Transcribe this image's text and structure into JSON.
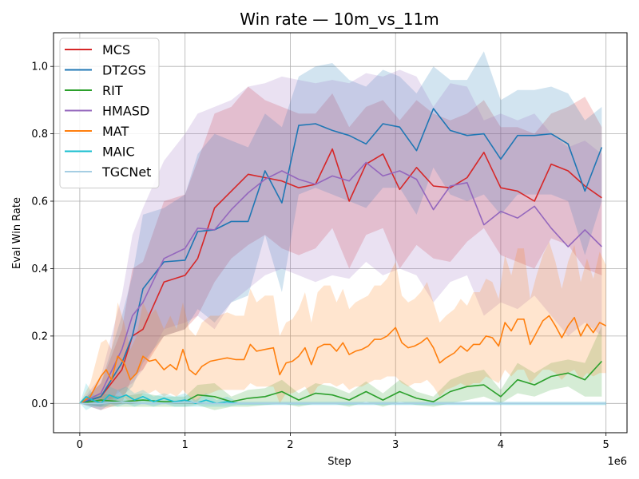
{
  "chart_data": {
    "type": "line",
    "title": "Win rate — 10m_vs_11m",
    "xlabel": "Step",
    "ylabel": "Eval Win Rate",
    "x_offset_label": "1e6",
    "xlim": [
      -0.25,
      5.2
    ],
    "ylim": [
      -0.087,
      1.1
    ],
    "x_ticks": [
      0,
      1,
      2,
      3,
      4,
      5
    ],
    "x_tick_labels": [
      "0",
      "1",
      "2",
      "3",
      "4",
      "5"
    ],
    "y_ticks": [
      0.0,
      0.2,
      0.4,
      0.6,
      0.8,
      1.0
    ],
    "y_tick_labels": [
      "0.0",
      "0.2",
      "0.4",
      "0.6",
      "0.8",
      "1.0"
    ],
    "grid": true,
    "legend_position": "top-left",
    "shaded_band": "mean ± spread across seeds",
    "series": [
      {
        "name": "MCS",
        "color": "#d62728",
        "x": [
          0,
          0.2,
          0.4,
          0.5,
          0.6,
          0.8,
          1.0,
          1.12,
          1.28,
          1.44,
          1.6,
          1.76,
          1.92,
          2.08,
          2.24,
          2.4,
          2.56,
          2.72,
          2.88,
          3.04,
          3.2,
          3.36,
          3.52,
          3.68,
          3.84,
          4.0,
          4.16,
          4.32,
          4.48,
          4.64,
          4.8,
          4.96
        ],
        "y": [
          0.0,
          0.02,
          0.1,
          0.2,
          0.22,
          0.36,
          0.38,
          0.43,
          0.58,
          0.63,
          0.68,
          0.67,
          0.66,
          0.64,
          0.65,
          0.755,
          0.6,
          0.71,
          0.74,
          0.635,
          0.7,
          0.645,
          0.64,
          0.67,
          0.745,
          0.64,
          0.63,
          0.6,
          0.71,
          0.69,
          0.645,
          0.61
        ],
        "lower": [
          0.0,
          -0.02,
          0.0,
          0.08,
          0.1,
          0.2,
          0.22,
          0.26,
          0.36,
          0.43,
          0.47,
          0.5,
          0.46,
          0.44,
          0.46,
          0.52,
          0.4,
          0.5,
          0.52,
          0.4,
          0.47,
          0.43,
          0.42,
          0.48,
          0.52,
          0.44,
          0.42,
          0.4,
          0.49,
          0.47,
          0.4,
          0.38
        ],
        "upper": [
          0.0,
          0.06,
          0.22,
          0.4,
          0.42,
          0.6,
          0.62,
          0.72,
          0.86,
          0.88,
          0.94,
          0.9,
          0.88,
          0.86,
          0.86,
          0.92,
          0.82,
          0.88,
          0.9,
          0.84,
          0.9,
          0.86,
          0.84,
          0.86,
          0.9,
          0.82,
          0.82,
          0.8,
          0.86,
          0.88,
          0.91,
          0.82
        ]
      },
      {
        "name": "DT2GS",
        "color": "#1f77b4",
        "x": [
          0,
          0.2,
          0.4,
          0.5,
          0.6,
          0.8,
          1.0,
          1.12,
          1.28,
          1.44,
          1.6,
          1.76,
          1.92,
          2.08,
          2.24,
          2.4,
          2.56,
          2.72,
          2.88,
          3.04,
          3.2,
          3.36,
          3.52,
          3.68,
          3.84,
          4.0,
          4.16,
          4.32,
          4.48,
          4.64,
          4.8,
          4.96
        ],
        "y": [
          0.0,
          0.02,
          0.12,
          0.2,
          0.34,
          0.42,
          0.425,
          0.51,
          0.515,
          0.54,
          0.54,
          0.69,
          0.595,
          0.825,
          0.83,
          0.81,
          0.795,
          0.77,
          0.83,
          0.82,
          0.75,
          0.875,
          0.81,
          0.795,
          0.8,
          0.725,
          0.795,
          0.795,
          0.8,
          0.77,
          0.63,
          0.76
        ],
        "lower": [
          0.0,
          -0.02,
          0.02,
          0.05,
          0.12,
          0.2,
          0.22,
          0.28,
          0.24,
          0.3,
          0.32,
          0.5,
          0.33,
          0.62,
          0.64,
          0.62,
          0.6,
          0.58,
          0.64,
          0.64,
          0.56,
          0.7,
          0.62,
          0.6,
          0.62,
          0.56,
          0.62,
          0.62,
          0.62,
          0.6,
          0.44,
          0.6
        ],
        "upper": [
          0.0,
          0.06,
          0.26,
          0.38,
          0.56,
          0.58,
          0.62,
          0.74,
          0.8,
          0.78,
          0.76,
          0.86,
          0.82,
          0.97,
          1.0,
          1.01,
          0.96,
          0.94,
          0.99,
          0.97,
          0.92,
          1.0,
          0.96,
          0.96,
          1.045,
          0.9,
          0.93,
          0.93,
          0.94,
          0.92,
          0.84,
          0.88
        ]
      },
      {
        "name": "RIT",
        "color": "#2ca02c",
        "x": [
          0,
          0.2,
          0.4,
          0.6,
          0.8,
          1.0,
          1.12,
          1.28,
          1.44,
          1.6,
          1.76,
          1.92,
          2.08,
          2.24,
          2.4,
          2.56,
          2.72,
          2.88,
          3.04,
          3.2,
          3.36,
          3.52,
          3.68,
          3.84,
          4.0,
          4.16,
          4.32,
          4.48,
          4.64,
          4.8,
          4.96
        ],
        "y": [
          0.0,
          0.01,
          0.005,
          0.01,
          0.005,
          0.005,
          0.025,
          0.02,
          0.005,
          0.015,
          0.02,
          0.035,
          0.01,
          0.03,
          0.025,
          0.01,
          0.035,
          0.01,
          0.035,
          0.015,
          0.005,
          0.035,
          0.05,
          0.055,
          0.02,
          0.07,
          0.055,
          0.08,
          0.09,
          0.07,
          0.125
        ],
        "lower": [
          0.0,
          -0.01,
          -0.01,
          -0.01,
          -0.01,
          -0.01,
          -0.005,
          -0.02,
          -0.01,
          -0.01,
          -0.005,
          0.0,
          -0.01,
          0.0,
          0.0,
          -0.01,
          0.005,
          -0.01,
          0.005,
          -0.005,
          -0.01,
          0.0,
          0.01,
          0.02,
          0.0,
          0.03,
          0.02,
          0.04,
          0.05,
          0.02,
          0.02
        ],
        "upper": [
          0.0,
          0.03,
          0.02,
          0.03,
          0.02,
          0.02,
          0.055,
          0.06,
          0.02,
          0.04,
          0.045,
          0.07,
          0.03,
          0.06,
          0.05,
          0.03,
          0.065,
          0.03,
          0.07,
          0.035,
          0.02,
          0.07,
          0.09,
          0.1,
          0.04,
          0.12,
          0.09,
          0.12,
          0.13,
          0.12,
          0.23
        ]
      },
      {
        "name": "HMASD",
        "color": "#9467bd",
        "x": [
          0,
          0.2,
          0.4,
          0.5,
          0.6,
          0.8,
          1.0,
          1.12,
          1.28,
          1.44,
          1.6,
          1.76,
          1.92,
          2.08,
          2.24,
          2.4,
          2.56,
          2.72,
          2.88,
          3.04,
          3.2,
          3.36,
          3.52,
          3.68,
          3.84,
          4.0,
          4.16,
          4.32,
          4.48,
          4.64,
          4.8,
          4.96
        ],
        "y": [
          0.0,
          0.03,
          0.16,
          0.26,
          0.3,
          0.43,
          0.46,
          0.52,
          0.515,
          0.575,
          0.625,
          0.665,
          0.69,
          0.665,
          0.65,
          0.675,
          0.66,
          0.715,
          0.675,
          0.69,
          0.665,
          0.575,
          0.645,
          0.655,
          0.53,
          0.57,
          0.55,
          0.585,
          0.52,
          0.465,
          0.515,
          0.465
        ],
        "lower": [
          0.0,
          -0.01,
          0.04,
          0.06,
          0.1,
          0.22,
          0.24,
          0.26,
          0.22,
          0.3,
          0.34,
          0.38,
          0.4,
          0.38,
          0.36,
          0.38,
          0.37,
          0.42,
          0.38,
          0.4,
          0.38,
          0.3,
          0.36,
          0.38,
          0.26,
          0.3,
          0.28,
          0.32,
          0.26,
          0.2,
          0.24,
          0.2
        ],
        "upper": [
          0.0,
          0.08,
          0.32,
          0.5,
          0.58,
          0.72,
          0.8,
          0.86,
          0.88,
          0.9,
          0.94,
          0.95,
          0.97,
          0.96,
          0.95,
          0.96,
          0.95,
          0.98,
          0.97,
          0.99,
          0.97,
          0.88,
          0.95,
          0.94,
          0.84,
          0.86,
          0.84,
          0.86,
          0.8,
          0.76,
          0.78,
          0.74
        ]
      },
      {
        "name": "MAT",
        "color": "#ff7f0e",
        "x": [
          0,
          0.1,
          0.2,
          0.25,
          0.3,
          0.36,
          0.42,
          0.48,
          0.54,
          0.6,
          0.66,
          0.72,
          0.8,
          0.86,
          0.92,
          0.98,
          1.04,
          1.1,
          1.16,
          1.24,
          1.32,
          1.4,
          1.48,
          1.56,
          1.62,
          1.68,
          1.76,
          1.84,
          1.9,
          1.96,
          2.02,
          2.08,
          2.14,
          2.2,
          2.26,
          2.32,
          2.38,
          2.44,
          2.5,
          2.56,
          2.62,
          2.68,
          2.74,
          2.8,
          2.86,
          2.92,
          3.0,
          3.06,
          3.12,
          3.18,
          3.24,
          3.3,
          3.36,
          3.42,
          3.48,
          3.56,
          3.62,
          3.68,
          3.74,
          3.8,
          3.86,
          3.92,
          3.98,
          4.04,
          4.1,
          4.16,
          4.22,
          4.28,
          4.34,
          4.4,
          4.46,
          4.52,
          4.58,
          4.64,
          4.7,
          4.76,
          4.82,
          4.88,
          4.94,
          5.0
        ],
        "y": [
          0.0,
          0.02,
          0.08,
          0.1,
          0.07,
          0.14,
          0.12,
          0.07,
          0.09,
          0.14,
          0.125,
          0.13,
          0.1,
          0.115,
          0.1,
          0.16,
          0.1,
          0.085,
          0.11,
          0.125,
          0.13,
          0.135,
          0.13,
          0.13,
          0.175,
          0.155,
          0.16,
          0.165,
          0.085,
          0.12,
          0.125,
          0.14,
          0.165,
          0.115,
          0.165,
          0.175,
          0.175,
          0.155,
          0.18,
          0.145,
          0.155,
          0.16,
          0.17,
          0.19,
          0.19,
          0.2,
          0.225,
          0.18,
          0.165,
          0.17,
          0.18,
          0.195,
          0.165,
          0.12,
          0.135,
          0.15,
          0.17,
          0.155,
          0.175,
          0.175,
          0.2,
          0.195,
          0.17,
          0.24,
          0.215,
          0.25,
          0.25,
          0.175,
          0.21,
          0.245,
          0.26,
          0.23,
          0.195,
          0.23,
          0.255,
          0.2,
          0.235,
          0.21,
          0.24,
          0.23
        ],
        "lower": [
          0.0,
          0.0,
          0.0,
          0.02,
          0.0,
          0.04,
          0.02,
          0.0,
          0.0,
          0.03,
          0.03,
          0.04,
          0.02,
          0.03,
          0.02,
          0.04,
          0.02,
          0.0,
          0.02,
          0.03,
          0.04,
          0.04,
          0.04,
          0.04,
          0.06,
          0.05,
          0.05,
          0.05,
          0.0,
          0.03,
          0.03,
          0.04,
          0.05,
          0.02,
          0.05,
          0.06,
          0.06,
          0.05,
          0.06,
          0.04,
          0.05,
          0.05,
          0.06,
          0.07,
          0.07,
          0.08,
          0.08,
          0.06,
          0.05,
          0.06,
          0.06,
          0.07,
          0.05,
          0.02,
          0.04,
          0.05,
          0.06,
          0.05,
          0.06,
          0.06,
          0.08,
          0.07,
          0.06,
          0.1,
          0.08,
          0.1,
          0.1,
          0.06,
          0.08,
          0.1,
          0.1,
          0.09,
          0.07,
          0.09,
          0.1,
          0.07,
          0.09,
          0.08,
          0.09,
          0.09
        ],
        "upper": [
          0.0,
          0.06,
          0.18,
          0.19,
          0.16,
          0.3,
          0.24,
          0.16,
          0.2,
          0.3,
          0.26,
          0.28,
          0.22,
          0.26,
          0.22,
          0.3,
          0.22,
          0.2,
          0.24,
          0.26,
          0.26,
          0.27,
          0.26,
          0.26,
          0.34,
          0.3,
          0.32,
          0.32,
          0.2,
          0.24,
          0.25,
          0.28,
          0.33,
          0.24,
          0.33,
          0.35,
          0.35,
          0.3,
          0.34,
          0.28,
          0.3,
          0.31,
          0.32,
          0.35,
          0.35,
          0.37,
          0.42,
          0.32,
          0.3,
          0.31,
          0.33,
          0.36,
          0.3,
          0.24,
          0.26,
          0.28,
          0.31,
          0.29,
          0.33,
          0.33,
          0.37,
          0.36,
          0.31,
          0.44,
          0.38,
          0.46,
          0.46,
          0.31,
          0.38,
          0.44,
          0.48,
          0.42,
          0.34,
          0.42,
          0.47,
          0.36,
          0.43,
          0.37,
          0.45,
          0.41
        ]
      },
      {
        "name": "MAIC",
        "color": "#17becf",
        "x": [
          0,
          0.06,
          0.12,
          0.2,
          0.28,
          0.36,
          0.44,
          0.52,
          0.6,
          0.7,
          0.8,
          0.9,
          1.0,
          1.1,
          1.2,
          1.3,
          1.4,
          1.5,
          1.7,
          1.9,
          2.1,
          2.5,
          3.0,
          3.5,
          4.0,
          4.5,
          5.0
        ],
        "y": [
          0.0,
          0.02,
          0.01,
          0.0,
          0.025,
          0.015,
          0.025,
          0.01,
          0.02,
          0.005,
          0.015,
          0.005,
          0.01,
          0.0,
          0.01,
          0.0,
          0.005,
          0.0,
          0.0,
          0.0,
          0.0,
          0.0,
          0.0,
          0.0,
          0.0,
          0.0,
          0.0
        ],
        "lower": [
          0.0,
          -0.02,
          -0.01,
          -0.01,
          0.0,
          -0.01,
          0.0,
          -0.01,
          0.0,
          -0.01,
          0.0,
          -0.01,
          -0.01,
          -0.01,
          -0.01,
          -0.01,
          -0.01,
          -0.005,
          -0.005,
          -0.005,
          -0.005,
          -0.005,
          -0.005,
          -0.005,
          -0.005,
          -0.005,
          -0.005
        ],
        "upper": [
          0.0,
          0.06,
          0.03,
          0.01,
          0.05,
          0.04,
          0.05,
          0.03,
          0.04,
          0.02,
          0.03,
          0.02,
          0.03,
          0.01,
          0.03,
          0.01,
          0.02,
          0.005,
          0.005,
          0.005,
          0.005,
          0.005,
          0.005,
          0.005,
          0.005,
          0.005,
          0.005
        ]
      },
      {
        "name": "TGCNet",
        "color": "#a6cee3",
        "x": [
          0,
          0.2,
          0.4,
          0.6,
          0.8,
          1.0,
          1.2,
          1.4,
          1.6,
          1.8,
          2.0,
          2.5,
          3.0,
          3.5,
          4.0,
          4.5,
          5.0
        ],
        "y": [
          0.0,
          0.0,
          0.005,
          0.0,
          0.0,
          0.005,
          0.0,
          0.0,
          0.0,
          0.0,
          0.0,
          0.0,
          0.0,
          0.0,
          0.0,
          0.0,
          0.0
        ],
        "lower": [
          0.0,
          -0.005,
          -0.005,
          -0.005,
          -0.005,
          -0.005,
          -0.005,
          -0.005,
          -0.005,
          -0.005,
          -0.005,
          -0.005,
          -0.005,
          -0.005,
          -0.005,
          -0.005,
          -0.005
        ],
        "upper": [
          0.0,
          0.005,
          0.015,
          0.005,
          0.005,
          0.015,
          0.005,
          0.005,
          0.005,
          0.005,
          0.005,
          0.005,
          0.005,
          0.005,
          0.005,
          0.005,
          0.005
        ]
      }
    ]
  }
}
